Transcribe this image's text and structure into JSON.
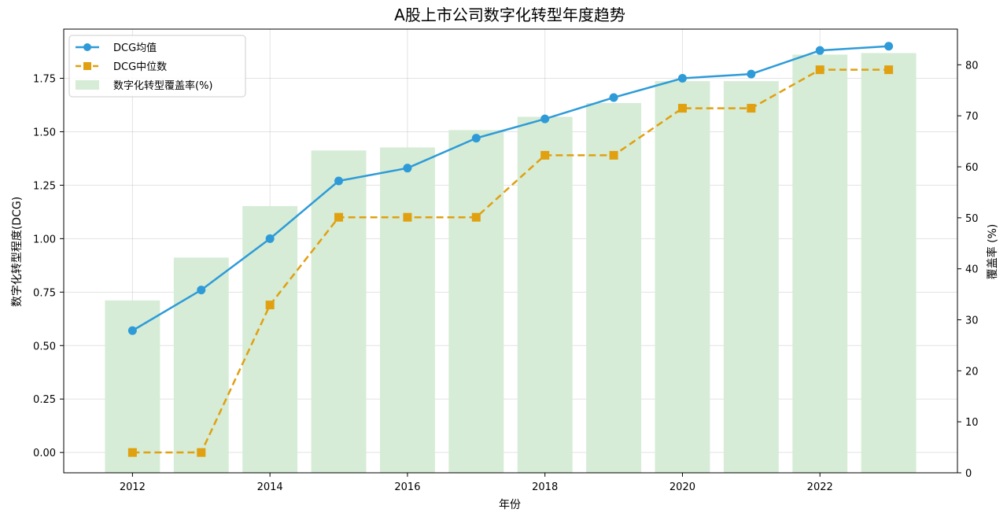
{
  "chart_data": {
    "type": "bar+line",
    "title": "A股上市公司数字化转型年度趋势",
    "xlabel": "年份",
    "ylabel_left": "数字化转型程度(DCG)",
    "ylabel_right": "覆盖率 (%)",
    "x": [
      2012,
      2013,
      2014,
      2015,
      2016,
      2017,
      2018,
      2019,
      2020,
      2021,
      2022,
      2023
    ],
    "xticks": [
      "2012",
      "2014",
      "2016",
      "2018",
      "2020",
      "2022"
    ],
    "yticks_left": [
      "0.00",
      "0.25",
      "0.50",
      "0.75",
      "1.00",
      "1.25",
      "1.50",
      "1.75"
    ],
    "yticks_right": [
      "0",
      "10",
      "20",
      "30",
      "40",
      "50",
      "60",
      "70",
      "80"
    ],
    "ylim_left": [
      -0.095,
      1.98
    ],
    "ylim_right": [
      0,
      87
    ],
    "xlim": [
      2011.0,
      2024.0
    ],
    "series": [
      {
        "name": "DCG均值",
        "type": "line",
        "axis": "left",
        "marker": "circle",
        "dash": "solid",
        "color": "#2E9BD8",
        "values": [
          0.57,
          0.76,
          1.0,
          1.27,
          1.33,
          1.47,
          1.56,
          1.66,
          1.75,
          1.77,
          1.88,
          1.9
        ]
      },
      {
        "name": "DCG中位数",
        "type": "line",
        "axis": "left",
        "marker": "square",
        "dash": "dashed",
        "color": "#E0A010",
        "values": [
          0.0,
          0.0,
          0.69,
          1.1,
          1.1,
          1.1,
          1.39,
          1.39,
          1.61,
          1.61,
          1.79,
          1.79
        ]
      },
      {
        "name": "数字化转型覆盖率(%)",
        "type": "bar",
        "axis": "right",
        "color": "#d6ecd6",
        "values": [
          33.8,
          42.2,
          52.3,
          63.2,
          63.8,
          67.2,
          69.8,
          72.5,
          76.8,
          76.8,
          82.0,
          82.3
        ]
      }
    ],
    "legend_position": "top-left",
    "grid": true
  }
}
